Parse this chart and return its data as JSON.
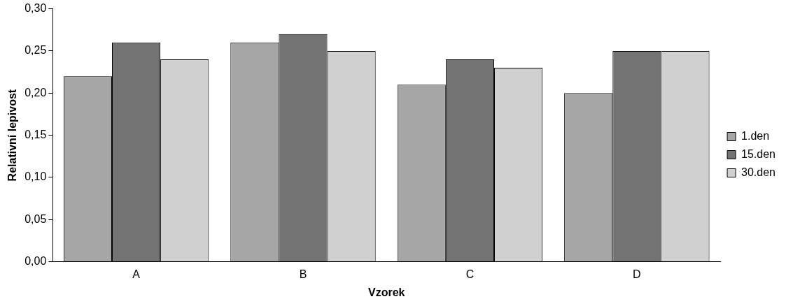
{
  "chart_data": {
    "type": "bar",
    "xlabel": "Vzorek",
    "ylabel": "Relativní lepivost",
    "categories": [
      "A",
      "B",
      "C",
      "D"
    ],
    "series": [
      {
        "name": "1.den",
        "color": "#a6a6a6",
        "values": [
          0.22,
          0.26,
          0.21,
          0.2
        ]
      },
      {
        "name": "15.den",
        "color": "#737373",
        "values": [
          0.26,
          0.27,
          0.24,
          0.25
        ]
      },
      {
        "name": "30.den",
        "color": "#d0d0d0",
        "values": [
          0.24,
          0.25,
          0.23,
          0.25
        ]
      }
    ],
    "ylim": [
      0,
      0.3
    ],
    "yticks": [
      {
        "value": 0,
        "label": "0,00"
      },
      {
        "value": 0.05,
        "label": "0,05"
      },
      {
        "value": 0.1,
        "label": "0,10"
      },
      {
        "value": 0.15,
        "label": "0,15"
      },
      {
        "value": 0.2,
        "label": "0,20"
      },
      {
        "value": 0.25,
        "label": "0,25"
      },
      {
        "value": 0.3,
        "label": "0,30"
      }
    ],
    "grid": false,
    "legend": "right"
  }
}
